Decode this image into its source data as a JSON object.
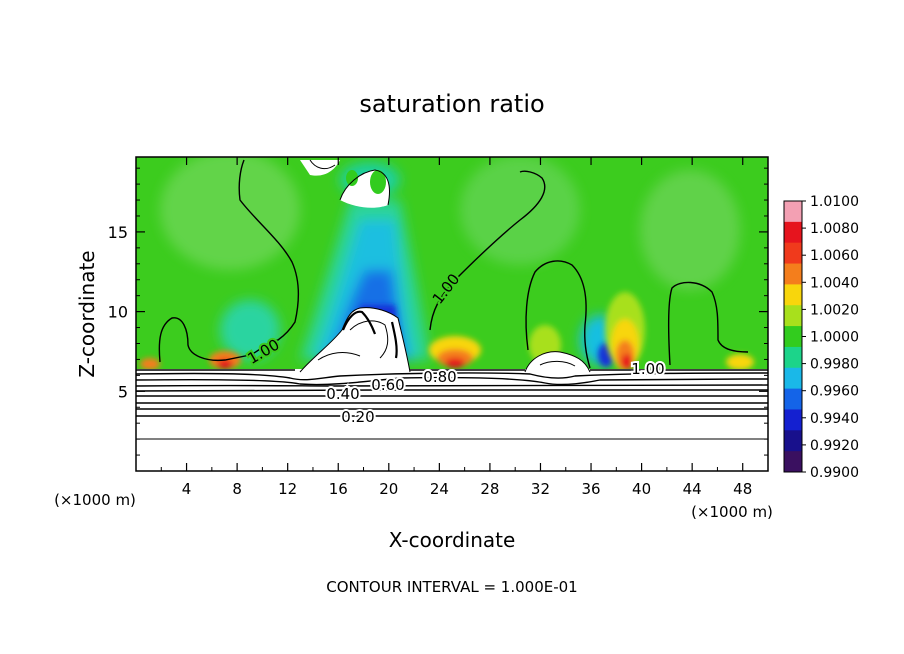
{
  "chart_data": {
    "type": "heatmap",
    "title": "saturation ratio",
    "xlabel": "X-coordinate",
    "ylabel": "Z-coordinate",
    "x_unit": "(×1000 m)",
    "y_unit": "(×1000 m)",
    "xlim": [
      0,
      50
    ],
    "ylim": [
      0,
      19.7
    ],
    "x_ticks": [
      4,
      8,
      12,
      16,
      20,
      24,
      28,
      32,
      36,
      40,
      44,
      48
    ],
    "y_ticks": [
      5,
      10,
      15
    ],
    "footer": "CONTOUR INTERVAL = 1.000E-01",
    "colorbar": {
      "labels": [
        "1.0100",
        "1.0080",
        "1.0060",
        "1.0040",
        "1.0020",
        "1.0000",
        "0.9980",
        "0.9960",
        "0.9940",
        "0.9920",
        "0.9900"
      ],
      "colors": [
        "#f3a0b3",
        "#e6141e",
        "#f03a1c",
        "#f47e1c",
        "#f8d60c",
        "#a8e01c",
        "#32cc1e",
        "#1cd48a",
        "#1ab8e8",
        "#1464e8",
        "#1420d0",
        "#18108c",
        "#3a1060"
      ]
    },
    "contour_labels": [
      {
        "text": "1.00",
        "x": 10.5,
        "y": 7.5
      },
      {
        "text": "1.00",
        "x": 25.0,
        "y": 11.0
      },
      {
        "text": "1.00",
        "x": 40.5,
        "y": 6.6
      },
      {
        "text": "0.80",
        "x": 24.0,
        "y": 6.0
      },
      {
        "text": "0.60",
        "x": 18.5,
        "y": 5.5
      },
      {
        "text": "0.40",
        "x": 16.5,
        "y": 4.8
      },
      {
        "text": "0.20",
        "x": 17.5,
        "y": 3.4
      }
    ]
  }
}
